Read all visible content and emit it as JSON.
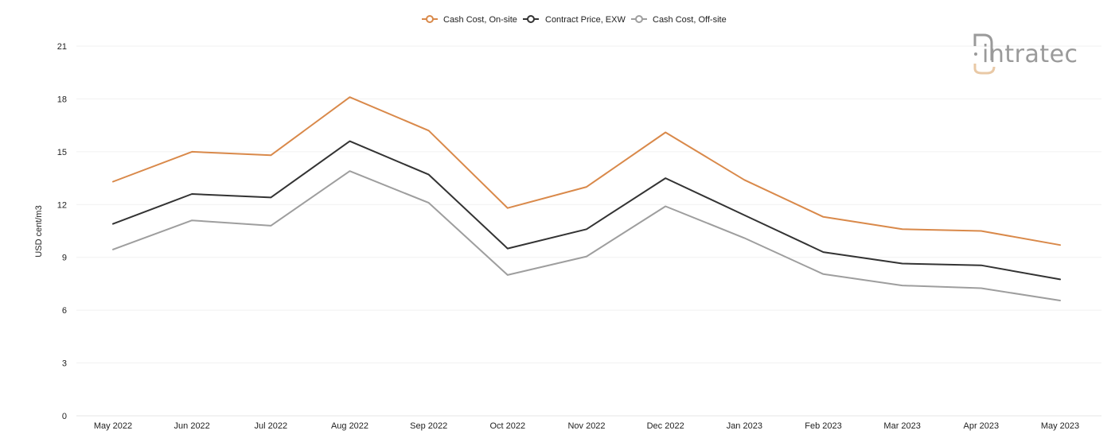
{
  "chart_data": {
    "type": "line",
    "categories": [
      "May 2022",
      "Jun 2022",
      "Jul 2022",
      "Aug 2022",
      "Sep 2022",
      "Oct 2022",
      "Nov 2022",
      "Dec 2022",
      "Jan 2023",
      "Feb 2023",
      "Mar 2023",
      "Apr 2023",
      "May 2023"
    ],
    "series": [
      {
        "name": "Cash Cost, On-site",
        "color": "#d9894a",
        "values": [
          13.3,
          15.0,
          14.8,
          18.1,
          16.2,
          11.8,
          13.0,
          16.1,
          13.4,
          11.3,
          10.6,
          10.5,
          9.7
        ]
      },
      {
        "name": "Contract Price, EXW",
        "color": "#333333",
        "values": [
          10.9,
          12.6,
          12.4,
          15.6,
          13.7,
          9.5,
          10.6,
          13.5,
          11.4,
          9.3,
          8.65,
          8.55,
          7.75
        ]
      },
      {
        "name": "Cash Cost, Off-site",
        "color": "#9e9e9e",
        "values": [
          9.45,
          11.1,
          10.8,
          13.9,
          12.1,
          8.0,
          9.05,
          11.9,
          10.1,
          8.05,
          7.4,
          7.25,
          6.55
        ]
      }
    ],
    "title": "",
    "xlabel": "",
    "ylabel": "USD cent/m3",
    "ylim": [
      0,
      21
    ],
    "yticks": [
      0,
      3,
      6,
      9,
      12,
      15,
      18,
      21
    ],
    "grid": true,
    "legend_position": "top-center"
  },
  "logo": {
    "text": "intratec",
    "accent_color": "#e9c9a6",
    "text_color": "#9a9a9a"
  }
}
